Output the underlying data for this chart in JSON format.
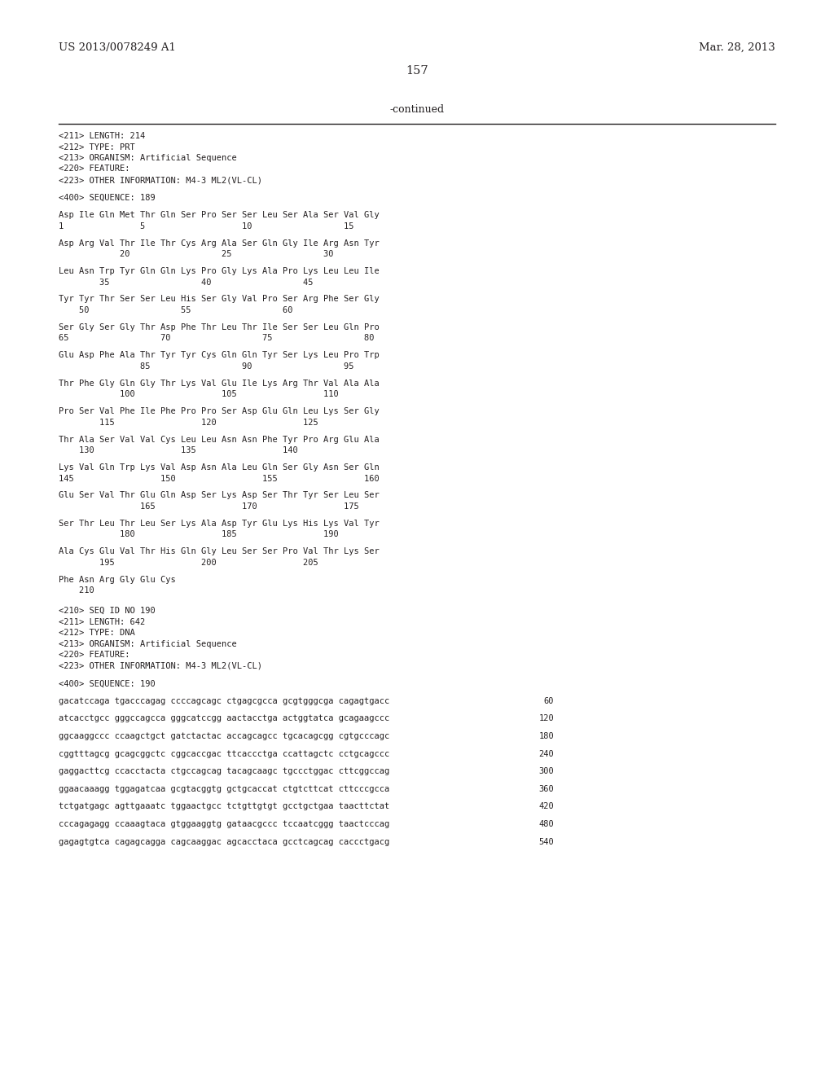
{
  "header_left": "US 2013/0078249 A1",
  "header_right": "Mar. 28, 2013",
  "page_number": "157",
  "continued_label": "-continued",
  "background_color": "#ffffff",
  "text_color": "#231f20",
  "header_fontsize": 9.5,
  "page_fontsize": 10.5,
  "mono_fontsize": 7.5,
  "meta1": [
    "<211> LENGTH: 214",
    "<212> TYPE: PRT",
    "<213> ORGANISM: Artificial Sequence",
    "<220> FEATURE:",
    "<223> OTHER INFORMATION: M4-3 ML2(VL-CL)"
  ],
  "seq189_header": "<400> SEQUENCE: 189",
  "seq189_blocks": [
    [
      "Asp Ile Gln Met Thr Gln Ser Pro Ser Ser Leu Ser Ala Ser Val Gly",
      "1               5                   10                  15"
    ],
    [
      "Asp Arg Val Thr Ile Thr Cys Arg Ala Ser Gln Gly Ile Arg Asn Tyr",
      "            20                  25                  30"
    ],
    [
      "Leu Asn Trp Tyr Gln Gln Lys Pro Gly Lys Ala Pro Lys Leu Leu Ile",
      "        35                  40                  45"
    ],
    [
      "Tyr Tyr Thr Ser Ser Leu His Ser Gly Val Pro Ser Arg Phe Ser Gly",
      "    50                  55                  60"
    ],
    [
      "Ser Gly Ser Gly Thr Asp Phe Thr Leu Thr Ile Ser Ser Leu Gln Pro",
      "65                  70                  75                  80"
    ],
    [
      "Glu Asp Phe Ala Thr Tyr Tyr Cys Gln Gln Tyr Ser Lys Leu Pro Trp",
      "                85                  90                  95"
    ],
    [
      "Thr Phe Gly Gln Gly Thr Lys Val Glu Ile Lys Arg Thr Val Ala Ala",
      "            100                 105                 110"
    ],
    [
      "Pro Ser Val Phe Ile Phe Pro Pro Ser Asp Glu Gln Leu Lys Ser Gly",
      "        115                 120                 125"
    ],
    [
      "Thr Ala Ser Val Val Cys Leu Leu Asn Asn Phe Tyr Pro Arg Glu Ala",
      "    130                 135                 140"
    ],
    [
      "Lys Val Gln Trp Lys Val Asp Asn Ala Leu Gln Ser Gly Asn Ser Gln",
      "145                 150                 155                 160"
    ],
    [
      "Glu Ser Val Thr Glu Gln Asp Ser Lys Asp Ser Thr Tyr Ser Leu Ser",
      "                165                 170                 175"
    ],
    [
      "Ser Thr Leu Thr Leu Ser Lys Ala Asp Tyr Glu Lys His Lys Val Tyr",
      "            180                 185                 190"
    ],
    [
      "Ala Cys Glu Val Thr His Gln Gly Leu Ser Ser Pro Val Thr Lys Ser",
      "        195                 200                 205"
    ],
    [
      "Phe Asn Arg Gly Glu Cys",
      "    210"
    ]
  ],
  "meta2": [
    "<210> SEQ ID NO 190",
    "<211> LENGTH: 642",
    "<212> TYPE: DNA",
    "<213> ORGANISM: Artificial Sequence",
    "<220> FEATURE:",
    "<223> OTHER INFORMATION: M4-3 ML2(VL-CL)"
  ],
  "seq190_header": "<400> SEQUENCE: 190",
  "seq190_blocks": [
    [
      "gacatccaga tgacccagag ccccagcagc ctgagcgcca gcgtgggcga cagagtgacc",
      "60"
    ],
    [
      "atcacctgcc gggccagcca gggcatccgg aactacctga actggtatca gcagaagccc",
      "120"
    ],
    [
      "ggcaaggccc ccaagctgct gatctactac accagcagcc tgcacagcgg cgtgcccagc",
      "180"
    ],
    [
      "cggtttagcg gcagcggctc cggcaccgac ttcaccctga ccattagctc cctgcagccc",
      "240"
    ],
    [
      "gaggacttcg ccacctacta ctgccagcag tacagcaagc tgccctggac cttcggccag",
      "300"
    ],
    [
      "ggaacaaagg tggagatcaa gcgtacggtg gctgcaccat ctgtcttcat cttcccgcca",
      "360"
    ],
    [
      "tctgatgagc agttgaaatc tggaactgcc tctgttgtgt gcctgctgaa taacttctat",
      "420"
    ],
    [
      "cccagagagg ccaaagtaca gtggaaggtg gataacgccc tccaatcggg taactcccag",
      "480"
    ],
    [
      "gagagtgtca cagagcagga cagcaaggac agcacctaca gcctcagcag caccctgacg",
      "540"
    ]
  ]
}
